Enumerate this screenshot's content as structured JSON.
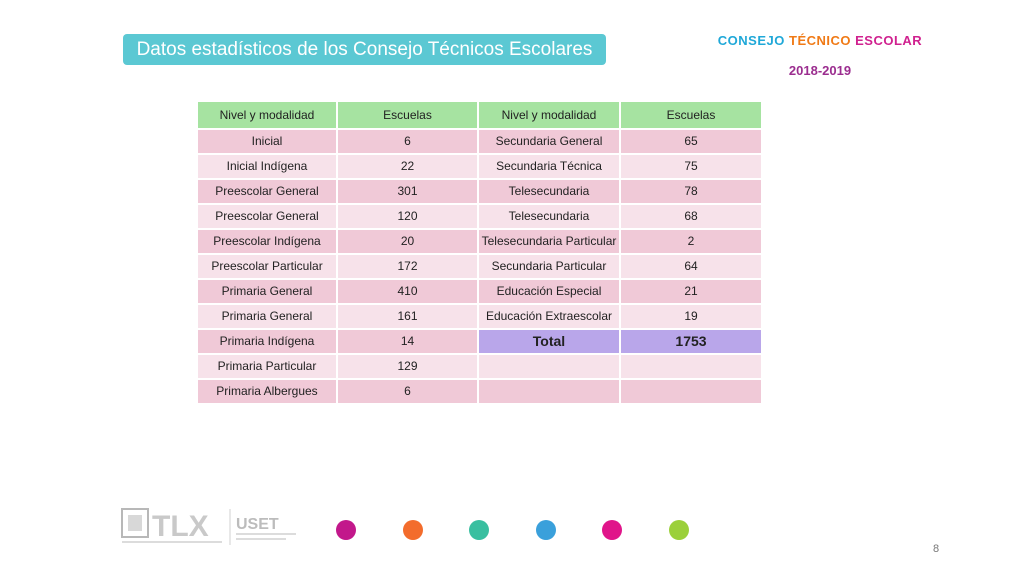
{
  "slide": {
    "title": "Datos estadísticos de los Consejo Técnicos Escolares",
    "brand": {
      "words": [
        {
          "text": "CONSEJO",
          "color": "#1fa8d8"
        },
        {
          "text": "TÉCNICO",
          "color": "#f07a16"
        },
        {
          "text": "ESCOLAR",
          "color": "#d0218f"
        }
      ],
      "year": "2018-2019"
    },
    "page_number": "8"
  },
  "table": {
    "headers": [
      "Nivel y modalidad",
      "Escuelas",
      "Nivel y modalidad",
      "Escuelas"
    ],
    "rows": [
      [
        "Inicial",
        "6",
        "Secundaria General",
        "65"
      ],
      [
        "Inicial Indígena",
        "22",
        "Secundaria Técnica",
        "75"
      ],
      [
        "Preescolar General",
        "301",
        "Telesecundaria",
        "78"
      ],
      [
        "Preescolar General",
        "120",
        "Telesecundaria",
        "68"
      ],
      [
        "Preescolar Indígena",
        "20",
        "Telesecundaria Particular",
        "2"
      ],
      [
        "Preescolar Particular",
        "172",
        "Secundaria Particular",
        "64"
      ],
      [
        "Primaria General",
        "410",
        "Educación Especial",
        "21"
      ],
      [
        "Primaria General",
        "161",
        "Educación Extraescolar",
        "19"
      ],
      [
        "Primaria Indígena",
        "14",
        "Total",
        "1753"
      ],
      [
        "Primaria Particular",
        "129",
        "",
        ""
      ],
      [
        "Primaria Albergues",
        "6",
        "",
        ""
      ]
    ],
    "total_row_index": 8
  },
  "footer": {
    "logo_text": "TLX",
    "logo_sub": "USET",
    "dot_colors": [
      "#c2188b",
      "#f36c2c",
      "#39bfa0",
      "#3aa0db",
      "#e0158a",
      "#9bd03a"
    ]
  }
}
